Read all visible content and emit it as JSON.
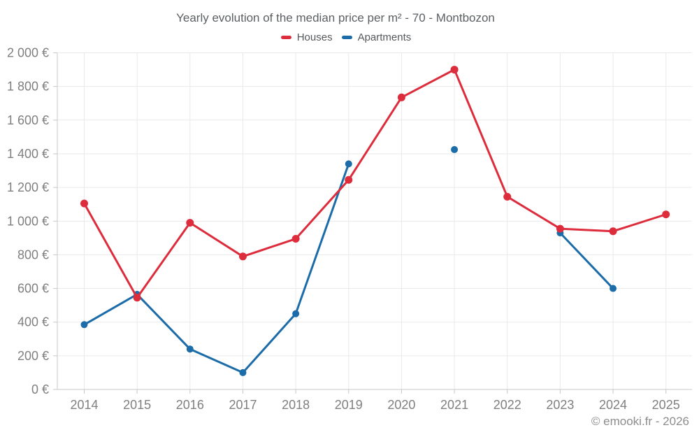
{
  "footer": "© emooki.fr - 2026",
  "chart_data": {
    "type": "line",
    "title": "Yearly evolution of the median price per m² - 70 - Montbozon",
    "categories": [
      "2014",
      "2015",
      "2016",
      "2017",
      "2018",
      "2019",
      "2020",
      "2021",
      "2022",
      "2023",
      "2024",
      "2025"
    ],
    "series": [
      {
        "name": "Houses",
        "color": "#dd2c3b",
        "values": [
          1105,
          545,
          990,
          790,
          895,
          1245,
          1735,
          1900,
          1145,
          955,
          940,
          1040
        ]
      },
      {
        "name": "Apartments",
        "color": "#1b6ca8",
        "values": [
          385,
          565,
          240,
          100,
          450,
          1340,
          null,
          1425,
          null,
          930,
          600,
          null
        ]
      }
    ],
    "xlabel": "",
    "ylabel": "",
    "ylim": [
      0,
      2000
    ],
    "y_ticks": [
      0,
      200,
      400,
      600,
      800,
      1000,
      1200,
      1400,
      1600,
      1800,
      2000
    ],
    "y_tick_suffix": " €",
    "grid": true,
    "legend_position": "top",
    "gap_years_apartments": [
      "2020",
      "2022",
      "2025"
    ]
  }
}
